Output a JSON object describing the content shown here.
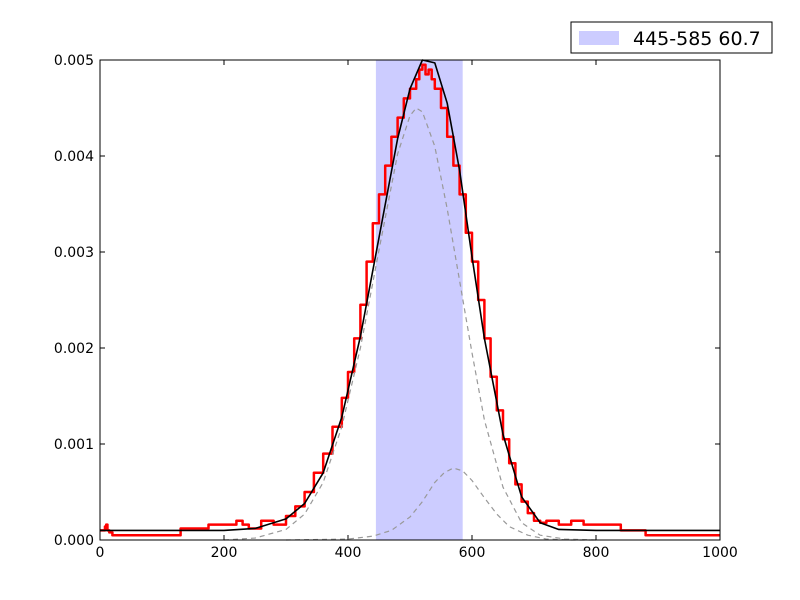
{
  "chart_data": {
    "type": "line",
    "title": "",
    "xlabel": "",
    "ylabel": "",
    "xlim": [
      0,
      1000
    ],
    "ylim": [
      0,
      0.005
    ],
    "grid": false,
    "legend_placement": "top-right, above plot",
    "x_ticks": [
      0,
      200,
      400,
      600,
      800,
      1000
    ],
    "x_tick_labels": [
      "0",
      "200",
      "400",
      "600",
      "800",
      "1000"
    ],
    "y_ticks": [
      0,
      0.001,
      0.002,
      0.003,
      0.004,
      0.005
    ],
    "y_tick_labels": [
      "0.000",
      "0.001",
      "0.002",
      "0.003",
      "0.004",
      "0.005"
    ],
    "highlight_band": {
      "x_start": 445,
      "x_end": 585,
      "label": "445-585 60.7",
      "color": "#ccccff"
    },
    "series": [
      {
        "style": "step",
        "color": "#ff0000",
        "x": [
          0,
          8,
          10,
          12,
          15,
          20,
          80,
          130,
          175,
          220,
          230,
          240,
          260,
          280,
          300,
          315,
          330,
          345,
          360,
          375,
          390,
          400,
          410,
          420,
          430,
          440,
          450,
          460,
          470,
          480,
          490,
          500,
          510,
          515,
          520,
          525,
          530,
          535,
          540,
          550,
          560,
          570,
          580,
          590,
          600,
          610,
          620,
          630,
          640,
          650,
          660,
          670,
          680,
          690,
          700,
          710,
          720,
          740,
          760,
          780,
          820,
          840,
          880,
          970,
          1000
        ],
        "y": [
          0.0001,
          0.00014,
          0.00016,
          0.0001,
          8e-05,
          5e-05,
          5e-05,
          0.00012,
          0.00016,
          0.0002,
          0.00016,
          0.00012,
          0.0002,
          0.00016,
          0.00025,
          0.00035,
          0.0005,
          0.0007,
          0.0009,
          0.00118,
          0.00148,
          0.00175,
          0.0021,
          0.00245,
          0.0029,
          0.0033,
          0.0036,
          0.0039,
          0.0042,
          0.0044,
          0.0046,
          0.0047,
          0.0048,
          0.0049,
          0.00495,
          0.00485,
          0.0049,
          0.0048,
          0.0047,
          0.0045,
          0.0042,
          0.0039,
          0.0036,
          0.0032,
          0.0029,
          0.0025,
          0.0021,
          0.0017,
          0.00135,
          0.00105,
          0.0008,
          0.00058,
          0.0004,
          0.00028,
          0.0002,
          0.00018,
          0.0002,
          0.00016,
          0.0002,
          0.00016,
          0.00016,
          0.0001,
          5e-05,
          5e-05,
          5e-05
        ]
      },
      {
        "style": "line",
        "color": "#000000",
        "x": [
          0,
          100,
          200,
          250,
          300,
          330,
          360,
          390,
          420,
          450,
          480,
          500,
          520,
          540,
          560,
          580,
          600,
          620,
          650,
          680,
          710,
          740,
          800,
          900,
          1000
        ],
        "y": [
          0.0001,
          0.0001,
          0.0001,
          0.00012,
          0.00022,
          0.00038,
          0.0007,
          0.00128,
          0.00212,
          0.00315,
          0.00418,
          0.0047,
          0.005,
          0.00497,
          0.00455,
          0.00385,
          0.00295,
          0.0021,
          0.0011,
          0.00045,
          0.00018,
          0.00011,
          0.0001,
          0.0001,
          0.0001
        ]
      },
      {
        "style": "dashed",
        "color": "#999999",
        "x": [
          200,
          250,
          300,
          330,
          360,
          390,
          420,
          450,
          480,
          500,
          510,
          520,
          540,
          560,
          580,
          600,
          620,
          650,
          680,
          710,
          750,
          800
        ],
        "y": [
          0,
          2e-05,
          0.00011,
          0.00027,
          0.0006,
          0.00118,
          0.002,
          0.00302,
          0.00402,
          0.00442,
          0.0045,
          0.00446,
          0.0041,
          0.00345,
          0.0027,
          0.00195,
          0.00125,
          0.00055,
          0.00018,
          5e-05,
          1e-05,
          0
        ]
      },
      {
        "style": "dashed",
        "color": "#999999",
        "x": [
          300,
          400,
          440,
          470,
          500,
          520,
          540,
          555,
          570,
          585,
          600,
          620,
          640,
          660,
          690,
          720,
          760,
          800
        ],
        "y": [
          0,
          1e-05,
          4e-05,
          0.0001,
          0.00024,
          0.0004,
          0.0006,
          0.0007,
          0.00075,
          0.00072,
          0.00062,
          0.00044,
          0.00027,
          0.00014,
          5e-05,
          1e-05,
          0,
          0
        ]
      }
    ]
  }
}
